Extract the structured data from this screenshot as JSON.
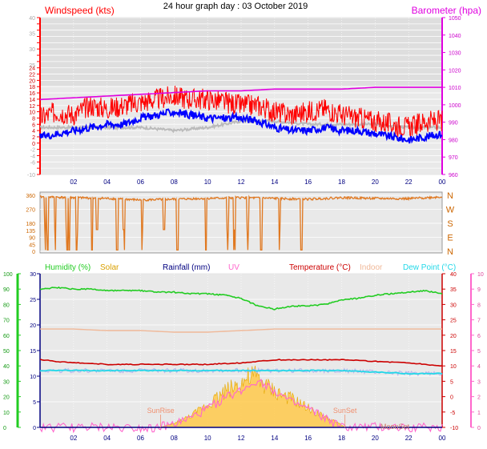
{
  "header": {
    "title": "24 hour graph day : 03 October 2019"
  },
  "colors": {
    "wind": "#ff0000",
    "wind_avg": "#0000ff",
    "baro": "#e000e0",
    "wind_dir": "#e07820",
    "humidity": "#22cc22",
    "solar": "#d9a000",
    "rainfall": "#000080",
    "uv": "#ff66cc",
    "temperature": "#cc0000",
    "indoor": "#f0b898",
    "dew_point": "#22d8e8",
    "frame_bg": "#e8e8e8"
  },
  "chart_data": [
    {
      "type": "line",
      "name": "wind-baro",
      "title": "",
      "left_axis_label": "Windspeed (kts)",
      "right_axis_label": "Barometer (hpa)",
      "x_ticks": [
        "02",
        "04",
        "06",
        "08",
        "10",
        "12",
        "14",
        "16",
        "18",
        "20",
        "22",
        "00"
      ],
      "x_range": [
        0,
        24
      ],
      "y_left": {
        "min": -10,
        "max": 40,
        "ticks": [
          -10,
          -8,
          -6,
          -4,
          -2,
          0,
          2,
          4,
          6,
          8,
          10,
          12,
          14,
          16,
          18,
          20,
          22,
          24,
          26,
          28,
          30,
          32,
          34,
          36,
          38,
          40
        ],
        "labels": [
          -10,
          -6,
          -4,
          -2,
          0,
          2,
          4,
          6,
          8,
          10,
          12,
          14,
          16,
          18,
          20,
          22,
          24,
          25,
          30,
          35,
          40
        ]
      },
      "y_right": {
        "min": 960,
        "max": 1050,
        "ticks": [
          960,
          970,
          980,
          990,
          1000,
          1010,
          1020,
          1030,
          1040,
          1050
        ]
      },
      "series": [
        {
          "name": "wind_gust",
          "x": [
            0,
            1,
            2,
            3,
            4,
            5,
            6,
            7,
            8,
            9,
            10,
            11,
            12,
            13,
            14,
            15,
            16,
            17,
            18,
            19,
            20,
            21,
            22,
            23,
            24
          ],
          "y": [
            8,
            10,
            9,
            12,
            11,
            12,
            13,
            14,
            15,
            14,
            14,
            13,
            12,
            12,
            10,
            9,
            10,
            11,
            9,
            8,
            7,
            6,
            5,
            7,
            7
          ]
        },
        {
          "name": "wind_avg",
          "x": [
            0,
            1,
            2,
            3,
            4,
            5,
            6,
            7,
            8,
            9,
            10,
            11,
            12,
            13,
            14,
            15,
            16,
            17,
            18,
            19,
            20,
            21,
            22,
            23,
            24
          ],
          "y": [
            2,
            3,
            4,
            5,
            6,
            6,
            8,
            9,
            10,
            9,
            8,
            8,
            8,
            7,
            5,
            4,
            4,
            5,
            4,
            4,
            3,
            2,
            1,
            2,
            3
          ]
        },
        {
          "name": "wind_grey",
          "x": [
            0,
            2,
            4,
            6,
            8,
            10,
            12,
            14,
            16,
            18,
            20,
            22,
            24
          ],
          "y": [
            5,
            5,
            5,
            5,
            4,
            5,
            7,
            7,
            6,
            6,
            6,
            5,
            5
          ]
        },
        {
          "name": "barometer",
          "x": [
            0,
            2,
            4,
            6,
            8,
            10,
            12,
            14,
            16,
            18,
            20,
            22,
            24
          ],
          "y": [
            1003,
            1004,
            1005,
            1006,
            1007,
            1008,
            1008,
            1009,
            1009,
            1009,
            1010,
            1010,
            1010
          ]
        }
      ]
    },
    {
      "type": "line",
      "name": "wind-direction",
      "title": "",
      "x_range": [
        0,
        24
      ],
      "y_range": [
        0,
        360
      ],
      "y_ticks": [
        0,
        90,
        180,
        270,
        360
      ],
      "y_minor_labels": [
        45,
        135
      ],
      "compass": [
        "N",
        "E",
        "S",
        "W",
        "N"
      ],
      "series": [
        {
          "name": "direction",
          "x": [
            0,
            2,
            4,
            6,
            8,
            10,
            12,
            14,
            16,
            18,
            20,
            22,
            24
          ],
          "y": [
            350,
            345,
            340,
            330,
            335,
            340,
            345,
            340,
            335,
            345,
            340,
            338,
            350
          ]
        }
      ]
    },
    {
      "type": "line",
      "name": "temp-hum-solar",
      "title": "",
      "legend": [
        "Humidity (%)",
        "Solar",
        "Rainfall (mm)",
        "UV",
        "Temperature (°C)",
        "Indoor",
        "Dew Point (°C)"
      ],
      "x_ticks": [
        "02",
        "04",
        "06",
        "08",
        "10",
        "12",
        "14",
        "16",
        "18",
        "20",
        "22",
        "00"
      ],
      "x_range": [
        0,
        24
      ],
      "y_humidity": {
        "min": 0,
        "max": 100,
        "ticks": [
          0,
          10,
          20,
          30,
          40,
          50,
          60,
          70,
          80,
          90,
          100
        ]
      },
      "y_rain": {
        "min": 0,
        "max": 30,
        "ticks": [
          0,
          5,
          10,
          15,
          20,
          25,
          30
        ]
      },
      "y_temp": {
        "min": -10,
        "max": 40,
        "ticks": [
          -10,
          -5,
          0,
          5,
          10,
          15,
          20,
          25,
          30,
          35,
          40
        ]
      },
      "y_uv": {
        "min": 0,
        "max": 10,
        "ticks": [
          0,
          1,
          2,
          3,
          4,
          5,
          6,
          7,
          8,
          9,
          10
        ]
      },
      "annotations": [
        {
          "text": "SunRise",
          "x": 7.2
        },
        {
          "text": "SunSet",
          "x": 18.2
        },
        {
          "text": "MoonSet",
          "x": 20.8
        }
      ],
      "series": [
        {
          "name": "humidity",
          "x": [
            0,
            1,
            2,
            3,
            4,
            5,
            6,
            7,
            8,
            9,
            10,
            11,
            12,
            13,
            14,
            15,
            16,
            17,
            18,
            19,
            20,
            21,
            22,
            23,
            24
          ],
          "y": [
            90,
            91,
            90,
            90,
            89,
            89,
            89,
            88,
            88,
            87,
            87,
            86,
            84,
            79,
            77,
            79,
            79,
            80,
            83,
            84,
            86,
            87,
            88,
            89,
            87
          ]
        },
        {
          "name": "temperature",
          "x": [
            0,
            2,
            4,
            6,
            8,
            10,
            12,
            14,
            16,
            18,
            20,
            22,
            24
          ],
          "y": [
            12,
            11,
            10.5,
            10.5,
            10.5,
            10.5,
            11,
            12,
            12,
            12,
            11.5,
            11,
            10
          ]
        },
        {
          "name": "indoor",
          "x": [
            0,
            2,
            4,
            6,
            8,
            10,
            12,
            14,
            16,
            18,
            20,
            22,
            24
          ],
          "y": [
            22,
            22,
            21.5,
            21.5,
            21,
            21,
            21.5,
            22,
            22,
            22,
            22,
            22,
            22
          ]
        },
        {
          "name": "dew_point",
          "x": [
            0,
            2,
            4,
            6,
            8,
            10,
            12,
            14,
            16,
            18,
            20,
            22,
            24
          ],
          "y": [
            8.5,
            8.5,
            8.5,
            8.5,
            8.5,
            8.5,
            8.5,
            8.5,
            8.5,
            8.5,
            8,
            7.5,
            7.5
          ]
        },
        {
          "name": "uv_index",
          "x": [
            0,
            7,
            8,
            9,
            10,
            11,
            12,
            13,
            14,
            15,
            16,
            17,
            18,
            24
          ],
          "y": [
            0,
            0,
            0.2,
            0.6,
            1.2,
            1.9,
            2.4,
            3.1,
            2.4,
            1.6,
            1.2,
            0.6,
            0,
            0
          ]
        },
        {
          "name": "solar",
          "x": [
            0,
            7.2,
            8,
            9,
            10,
            11,
            12,
            12.8,
            13.5,
            14,
            15,
            16,
            17,
            18,
            18.2,
            24
          ],
          "y": [
            0,
            0,
            3,
            9,
            18,
            28,
            35,
            40,
            32,
            28,
            22,
            15,
            8,
            2,
            0,
            0
          ]
        }
      ]
    }
  ]
}
